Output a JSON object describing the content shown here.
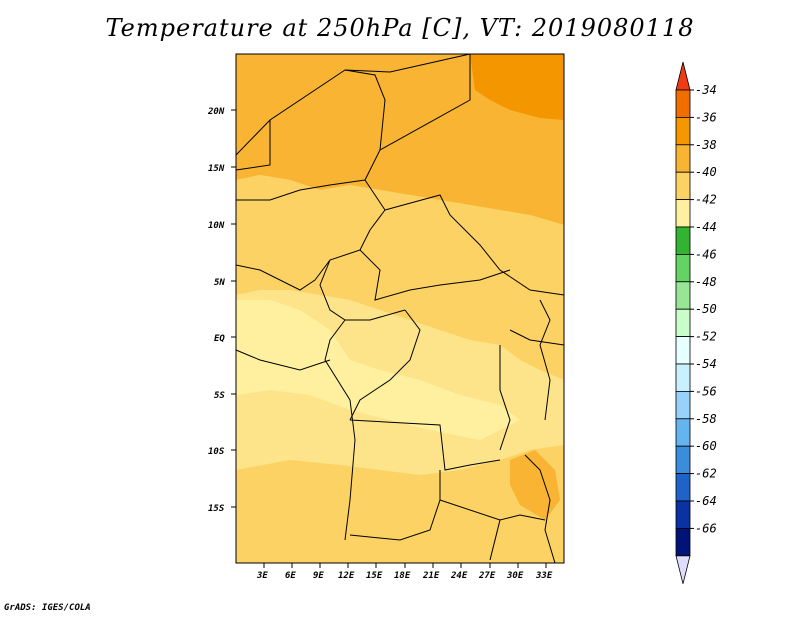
{
  "title": "Temperature at 250hPa [C], VT: 2019080118",
  "credit": "GrADS: IGES/COLA",
  "map": {
    "lat_labels": [
      "20N",
      "15N",
      "10N",
      "5N",
      "EQ",
      "5S",
      "10S",
      "15S"
    ],
    "lon_labels": [
      "3E",
      "6E",
      "9E",
      "12E",
      "15E",
      "18E",
      "21E",
      "24E",
      "27E",
      "30E",
      "33E"
    ]
  },
  "colorbar": {
    "labels": [
      "-34",
      "-36",
      "-38",
      "-40",
      "-42",
      "-44",
      "-46",
      "-48",
      "-50",
      "-52",
      "-54",
      "-56",
      "-58",
      "-60",
      "-62",
      "-64",
      "-66"
    ],
    "colors": [
      "#f03c14",
      "#f06e00",
      "#f49600",
      "#f8b432",
      "#fcd264",
      "#fff0a0",
      "#32b432",
      "#64d264",
      "#96e696",
      "#c8ffc8",
      "#e6ffff",
      "#c8f0ff",
      "#96d2fa",
      "#64b4f0",
      "#3c8cdc",
      "#1e64c8",
      "#0a32a0",
      "#001478",
      "#e0dcff"
    ]
  },
  "regions": {
    "fill_colors": {
      "c36": "#f49600",
      "c38": "#f8b432",
      "c40": "#fcd264",
      "c42": "#fde48a",
      "c44": "#fff0a0"
    }
  }
}
